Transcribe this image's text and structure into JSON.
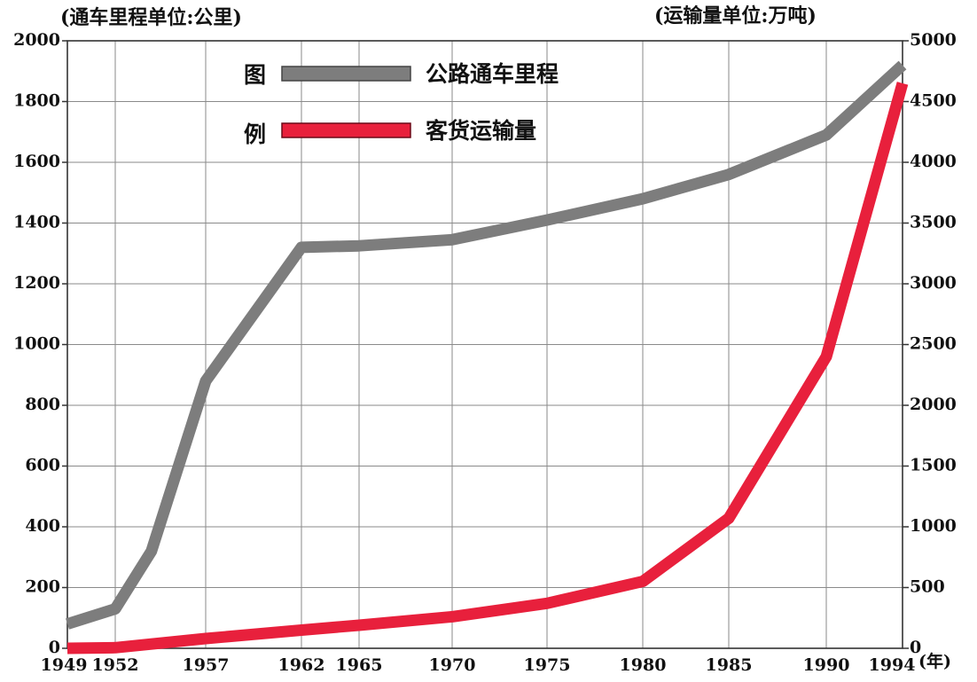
{
  "chart_data": {
    "type": "line",
    "left_axis_unit": "(通车里程单位:公里)",
    "right_axis_unit": "(运输量单位:万吨)",
    "x_labels": [
      "1949",
      "1952",
      "1957",
      "1962",
      "1965",
      "1970",
      "1975",
      "1980",
      "1985",
      "1990",
      "1994"
    ],
    "x_suffix": "(年)",
    "y_left_ticks": [
      "0",
      "200",
      "400",
      "600",
      "800",
      "1000",
      "1200",
      "1400",
      "1600",
      "1800",
      "2000"
    ],
    "y_right_ticks": [
      "0",
      "500",
      "1000",
      "1500",
      "2000",
      "2500",
      "3000",
      "3500",
      "4000",
      "4500",
      "5000"
    ],
    "y_left_range": [
      0,
      2000
    ],
    "y_right_range": [
      0,
      5000
    ],
    "legend_title_top": "图",
    "legend_title_bottom": "例",
    "grid": true,
    "series": [
      {
        "name": "公路通车里程",
        "axis": "left",
        "color": "#7d7d7d",
        "points": [
          [
            1949,
            80
          ],
          [
            1952,
            130
          ],
          [
            1954,
            320
          ],
          [
            1957,
            880
          ],
          [
            1962,
            1320
          ],
          [
            1965,
            1325
          ],
          [
            1970,
            1345
          ],
          [
            1975,
            1410
          ],
          [
            1980,
            1480
          ],
          [
            1985,
            1560
          ],
          [
            1990,
            1690
          ],
          [
            1994,
            1920
          ]
        ]
      },
      {
        "name": "客货运输量",
        "axis": "right",
        "color": "#e8203c",
        "points": [
          [
            1949,
            0
          ],
          [
            1952,
            5
          ],
          [
            1957,
            80
          ],
          [
            1962,
            150
          ],
          [
            1965,
            190
          ],
          [
            1970,
            260
          ],
          [
            1975,
            370
          ],
          [
            1980,
            550
          ],
          [
            1985,
            1070
          ],
          [
            1990,
            2400
          ],
          [
            1994,
            4650
          ]
        ]
      }
    ]
  }
}
